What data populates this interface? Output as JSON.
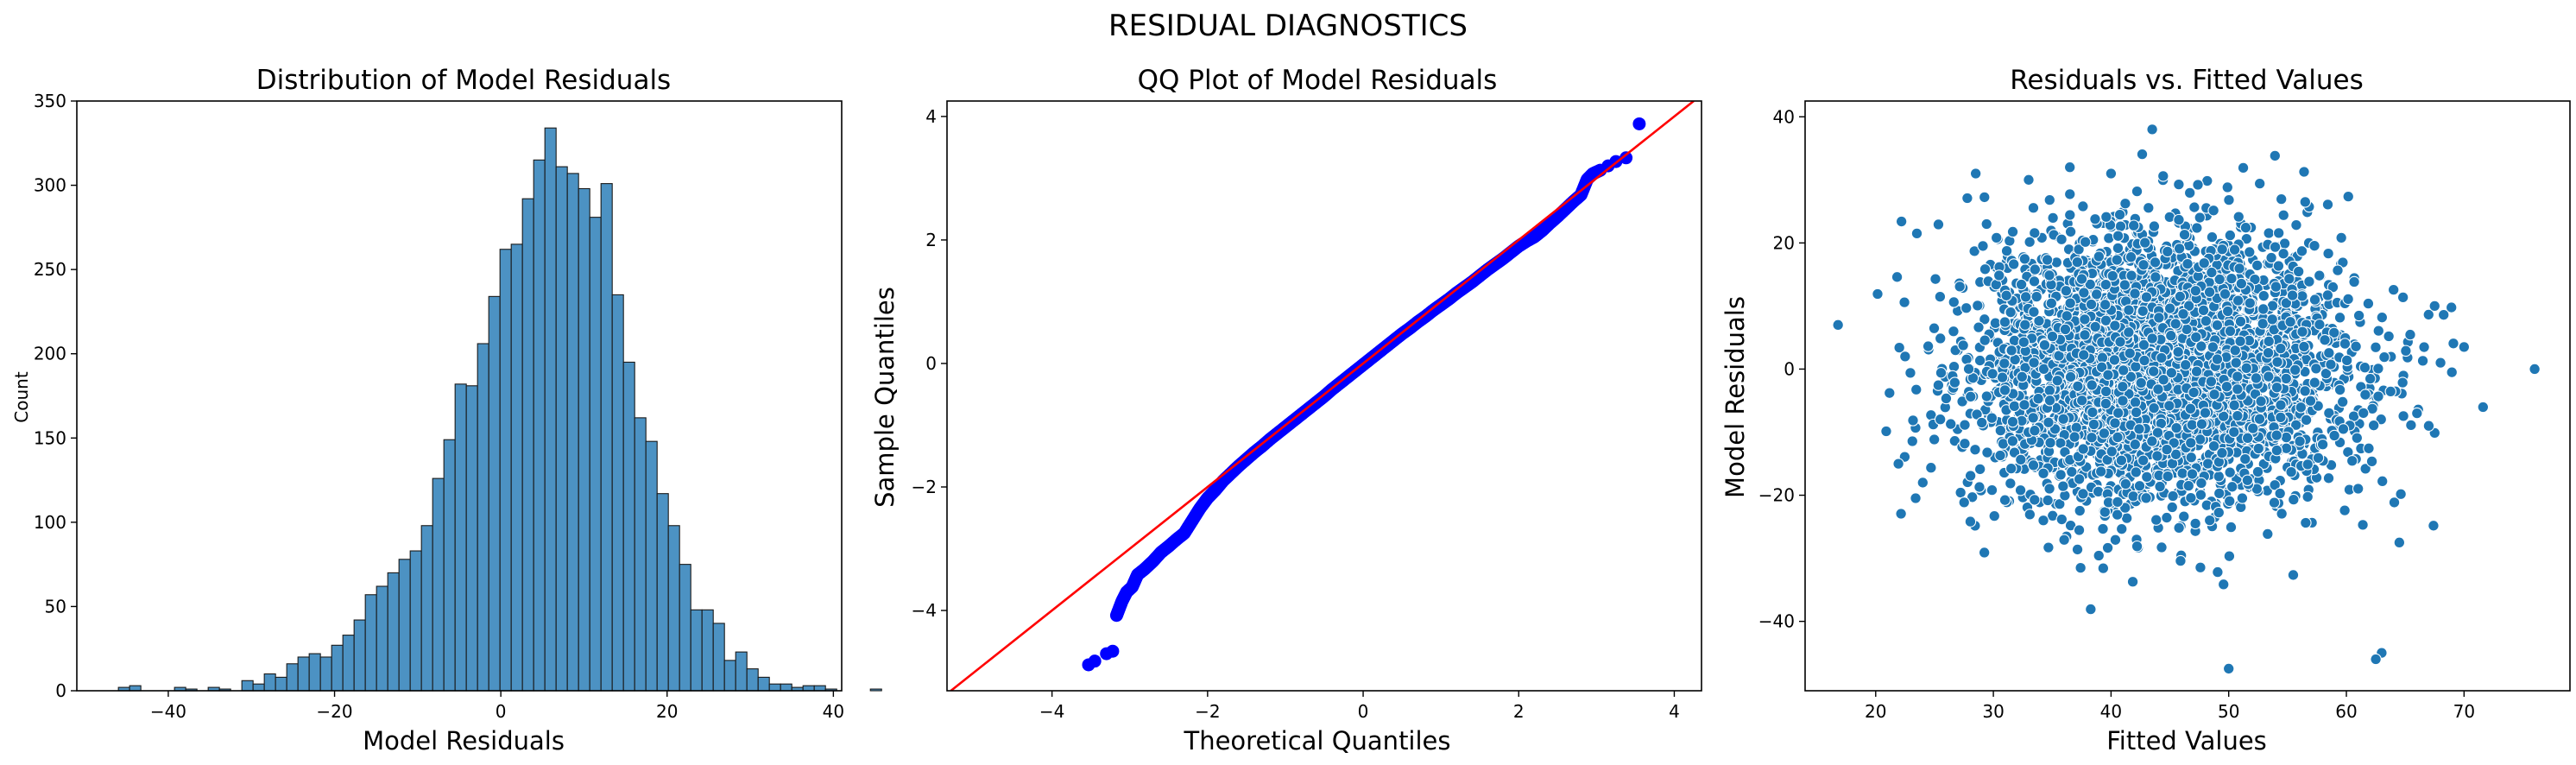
{
  "suptitle": "RESIDUAL DIAGNOSTICS",
  "chart_data": [
    {
      "type": "bar",
      "title": "Distribution of Model Residuals",
      "xlabel": "Model Residuals",
      "ylabel": "Count",
      "xlim": [
        -51,
        41
      ],
      "ylim": [
        0,
        350
      ],
      "xticks": [
        -40,
        -20,
        0,
        20,
        40
      ],
      "yticks": [
        0,
        50,
        100,
        150,
        200,
        250,
        300,
        350
      ],
      "bin_start": -46.0,
      "bin_width": 1.35,
      "values": [
        2,
        3,
        0,
        0,
        0,
        2,
        1,
        0,
        2,
        1,
        0,
        6,
        4,
        10,
        8,
        16,
        20,
        22,
        20,
        27,
        33,
        42,
        57,
        62,
        70,
        78,
        83,
        98,
        126,
        149,
        182,
        181,
        206,
        234,
        262,
        265,
        292,
        315,
        334,
        311,
        307,
        298,
        281,
        301,
        235,
        195,
        162,
        148,
        117,
        98,
        75,
        48,
        48,
        40,
        18,
        23,
        13,
        8,
        4,
        4,
        2,
        3,
        3,
        1,
        0,
        0,
        0,
        1
      ],
      "color": "#4c92c3"
    },
    {
      "type": "scatter",
      "title": "QQ Plot of Model Residuals",
      "xlabel": "Theoretical Quantiles",
      "ylabel": "Sample Quantiles",
      "xlim": [
        -5.35,
        4.35
      ],
      "ylim": [
        -5.3,
        4.25
      ],
      "xticks": [
        -4,
        -2,
        0,
        2,
        4
      ],
      "yticks": [
        -4,
        -2,
        0,
        2,
        4
      ],
      "reference_line": "45-degree",
      "points": [
        [
          -3.53,
          -4.88
        ],
        [
          -3.45,
          -4.82
        ],
        [
          -3.3,
          -4.7
        ],
        [
          -3.22,
          -4.66
        ],
        [
          -3.17,
          -4.08
        ],
        [
          -3.1,
          -3.85
        ],
        [
          -3.04,
          -3.7
        ],
        [
          -2.97,
          -3.62
        ],
        [
          -2.9,
          -3.42
        ],
        [
          -2.81,
          -3.33
        ],
        [
          -2.7,
          -3.2
        ],
        [
          -2.6,
          -3.06
        ],
        [
          -2.5,
          -2.96
        ],
        [
          -2.4,
          -2.85
        ],
        [
          -2.3,
          -2.75
        ],
        [
          -2.2,
          -2.55
        ],
        [
          -2.1,
          -2.35
        ],
        [
          -2.0,
          -2.18
        ],
        [
          -1.9,
          -2.05
        ],
        [
          -1.8,
          -1.9
        ],
        [
          -1.7,
          -1.78
        ],
        [
          -1.6,
          -1.66
        ],
        [
          -1.5,
          -1.55
        ],
        [
          -1.4,
          -1.44
        ],
        [
          -1.3,
          -1.34
        ],
        [
          -1.2,
          -1.23
        ],
        [
          -1.1,
          -1.13
        ],
        [
          -1.0,
          -1.03
        ],
        [
          -0.9,
          -0.93
        ],
        [
          -0.8,
          -0.83
        ],
        [
          -0.7,
          -0.73
        ],
        [
          -0.6,
          -0.63
        ],
        [
          -0.5,
          -0.53
        ],
        [
          -0.4,
          -0.42
        ],
        [
          -0.3,
          -0.32
        ],
        [
          -0.2,
          -0.22
        ],
        [
          -0.1,
          -0.12
        ],
        [
          0.0,
          -0.02
        ],
        [
          0.1,
          0.08
        ],
        [
          0.2,
          0.18
        ],
        [
          0.3,
          0.28
        ],
        [
          0.4,
          0.38
        ],
        [
          0.5,
          0.48
        ],
        [
          0.6,
          0.57
        ],
        [
          0.7,
          0.67
        ],
        [
          0.8,
          0.76
        ],
        [
          0.9,
          0.86
        ],
        [
          1.0,
          0.95
        ],
        [
          1.1,
          1.04
        ],
        [
          1.2,
          1.14
        ],
        [
          1.3,
          1.23
        ],
        [
          1.4,
          1.32
        ],
        [
          1.5,
          1.42
        ],
        [
          1.6,
          1.52
        ],
        [
          1.7,
          1.61
        ],
        [
          1.8,
          1.7
        ],
        [
          1.9,
          1.8
        ],
        [
          2.0,
          1.9
        ],
        [
          2.1,
          1.98
        ],
        [
          2.2,
          2.05
        ],
        [
          2.3,
          2.15
        ],
        [
          2.4,
          2.27
        ],
        [
          2.5,
          2.38
        ],
        [
          2.6,
          2.5
        ],
        [
          2.7,
          2.62
        ],
        [
          2.8,
          2.73
        ],
        [
          2.88,
          2.98
        ],
        [
          2.95,
          3.07
        ],
        [
          3.05,
          3.13
        ],
        [
          3.15,
          3.2
        ],
        [
          3.25,
          3.27
        ],
        [
          3.38,
          3.33
        ],
        [
          3.55,
          3.88
        ]
      ]
    },
    {
      "type": "scatter",
      "title": "Residuals vs. Fitted Values",
      "xlabel": "Fitted Values",
      "ylabel": "Model Residuals",
      "xlim": [
        14,
        79
      ],
      "ylim": [
        -51,
        42.5
      ],
      "xticks": [
        20,
        30,
        40,
        50,
        60,
        70
      ],
      "yticks": [
        -40,
        -20,
        0,
        20,
        40
      ],
      "cloud_center": [
        44,
        0
      ],
      "point_count": 4000,
      "outliers": [
        [
          16.8,
          7
        ],
        [
          76,
          0
        ],
        [
          70,
          3.5
        ],
        [
          68,
          1
        ],
        [
          66,
          -7
        ],
        [
          63,
          -45
        ],
        [
          62.5,
          -46
        ],
        [
          50,
          -47.5
        ],
        [
          43.5,
          38
        ],
        [
          40,
          31
        ],
        [
          36.5,
          32
        ],
        [
          64.5,
          -27.5
        ],
        [
          23.5,
          21.5
        ],
        [
          22.5,
          2
        ],
        [
          24,
          -18
        ],
        [
          28.5,
          31
        ],
        [
          33,
          30
        ],
        [
          56.5,
          26.5
        ],
        [
          67.5,
          10
        ],
        [
          67,
          -9
        ]
      ],
      "color": "#1f77b4"
    }
  ]
}
